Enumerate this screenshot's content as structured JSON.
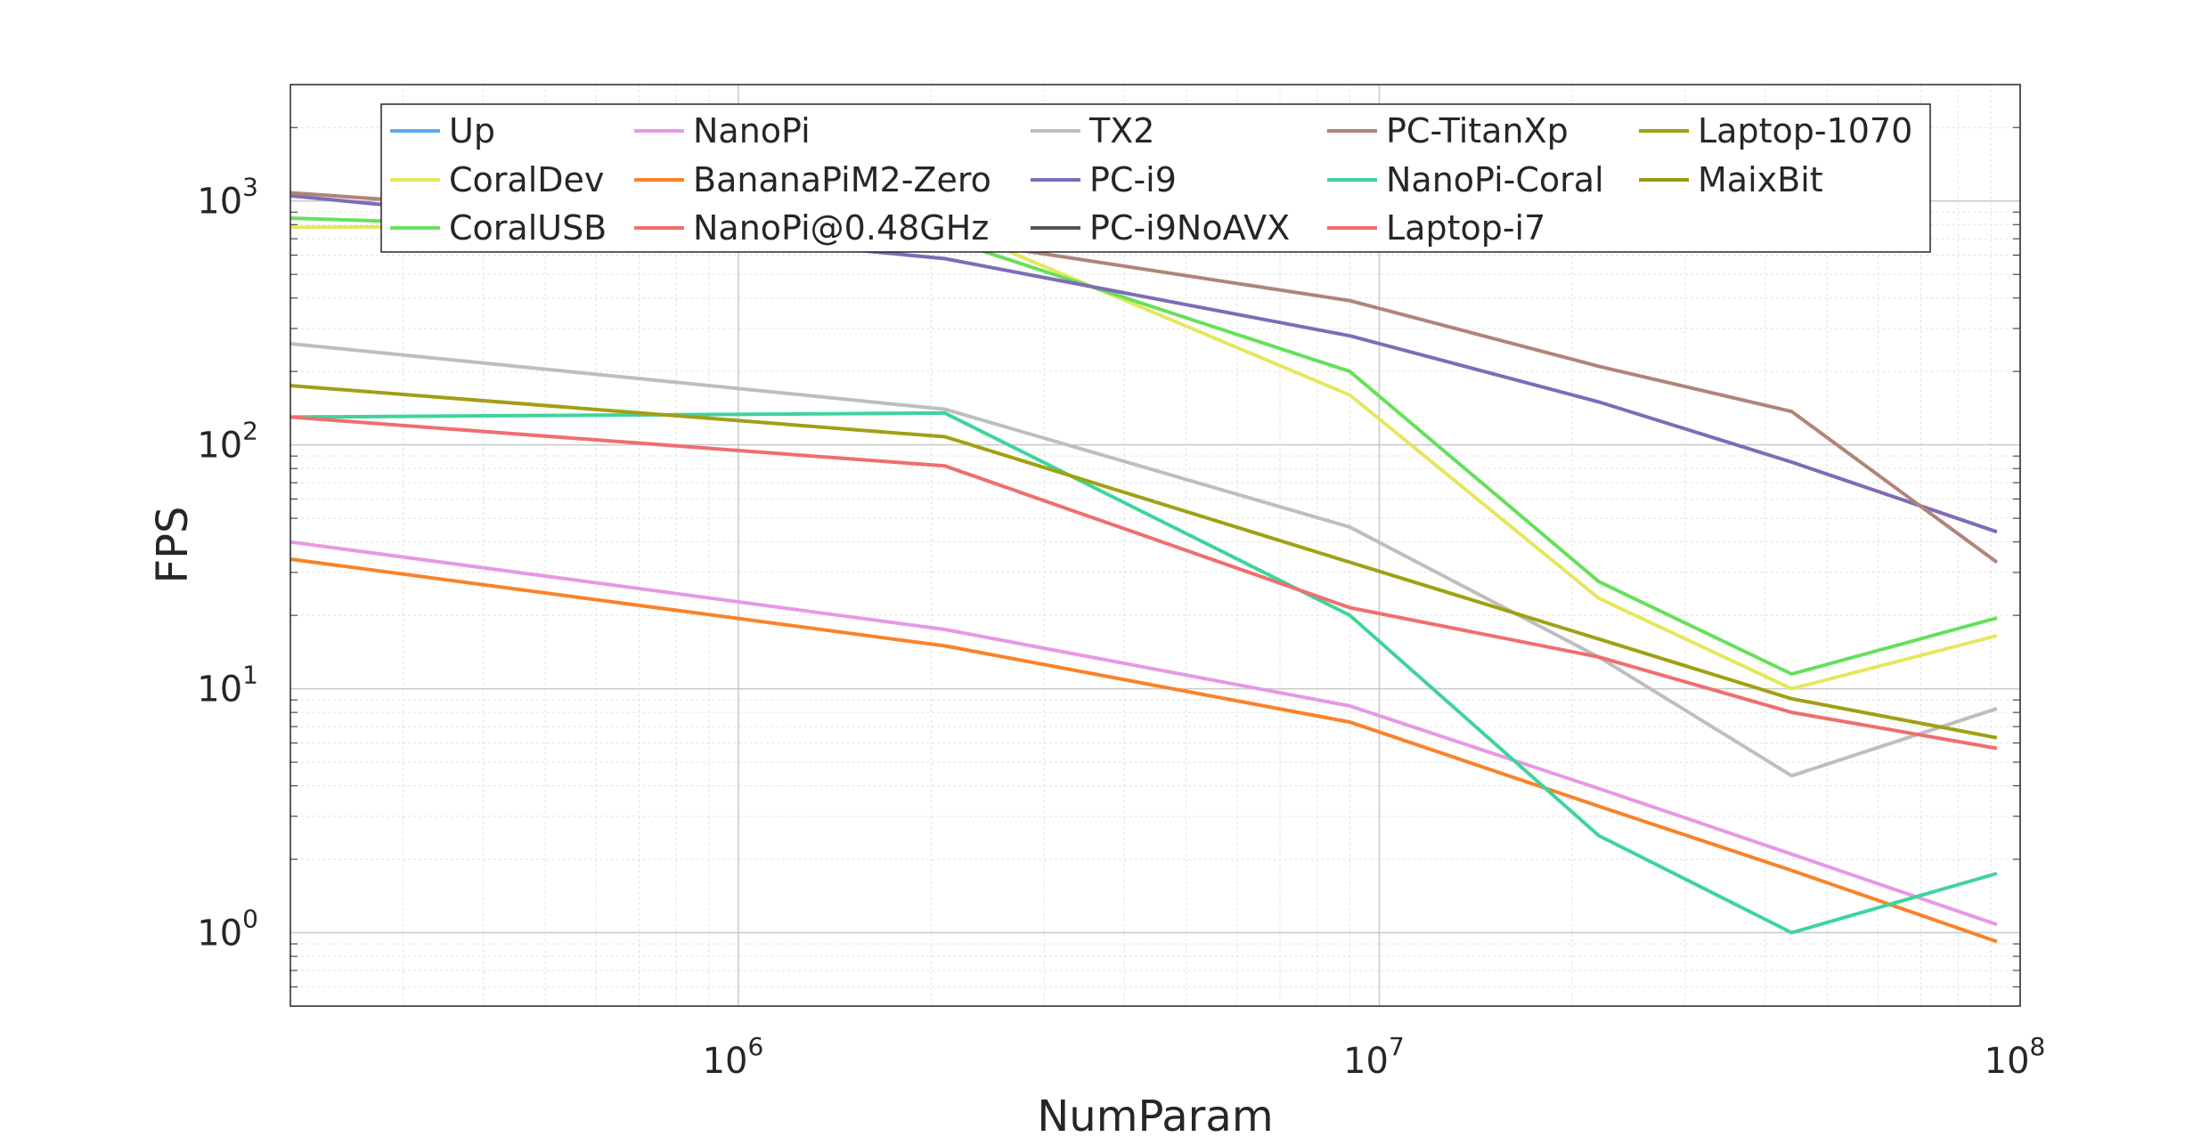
{
  "chart_data": {
    "type": "line",
    "xlabel": "NumParam",
    "ylabel": "FPS",
    "x_scale": "log",
    "y_scale": "log",
    "xlim": [
      200000,
      100000000
    ],
    "ylim": [
      0.5,
      3000
    ],
    "x_ticks": [
      {
        "value": 1000000,
        "base": "10",
        "exp": "6"
      },
      {
        "value": 10000000,
        "base": "10",
        "exp": "7"
      },
      {
        "value": 100000000,
        "base": "10",
        "exp": "8"
      }
    ],
    "y_ticks": [
      {
        "value": 1,
        "base": "10",
        "exp": "0"
      },
      {
        "value": 10,
        "base": "10",
        "exp": "1"
      },
      {
        "value": 100,
        "base": "10",
        "exp": "2"
      },
      {
        "value": 1000,
        "base": "10",
        "exp": "3"
      }
    ],
    "grid": true,
    "legend_position": "top",
    "series": [
      {
        "name": "Up",
        "color": "#5aaaf0",
        "x": [],
        "y": []
      },
      {
        "name": "CoralDev",
        "color": "#e6e65f",
        "x": [
          200000,
          2100000,
          9000000,
          22000000,
          44000000,
          92000000
        ],
        "y": [
          780,
          800,
          160,
          23.5,
          10,
          16.5
        ]
      },
      {
        "name": "CoralUSB",
        "color": "#66e05a",
        "x": [
          200000,
          2100000,
          9000000,
          22000000,
          44000000,
          92000000
        ],
        "y": [
          850,
          700,
          200,
          27.5,
          11.5,
          19.5
        ]
      },
      {
        "name": "NanoPi",
        "color": "#e698e6",
        "x": [
          200000,
          2100000,
          9000000,
          22000000,
          44000000,
          92000000
        ],
        "y": [
          40,
          17.5,
          8.5,
          3.9,
          2.1,
          1.08
        ]
      },
      {
        "name": "BananaPiM2-Zero",
        "color": "#fa8228",
        "x": [
          200000,
          2100000,
          9000000,
          22000000,
          44000000,
          92000000
        ],
        "y": [
          34,
          15,
          7.3,
          3.3,
          1.8,
          0.92
        ]
      },
      {
        "name": "NanoPi@0.48GHz",
        "color": "#f06e6e",
        "x": [],
        "y": []
      },
      {
        "name": "TX2",
        "color": "#bebebe",
        "x": [
          200000,
          2100000,
          9000000,
          22000000,
          44000000,
          92000000
        ],
        "y": [
          260,
          140,
          46,
          13.5,
          4.4,
          8.3
        ]
      },
      {
        "name": "PC-i9",
        "color": "#7f6bb8",
        "x": [
          200000,
          2100000,
          9000000,
          22000000,
          44000000,
          92000000
        ],
        "y": [
          1050,
          580,
          280,
          150,
          85,
          44
        ]
      },
      {
        "name": "PC-i9NoAVX",
        "color": "#555555",
        "x": [],
        "y": []
      },
      {
        "name": "PC-TitanXp",
        "color": "#b08478",
        "x": [
          200000,
          2100000,
          9000000,
          22000000,
          44000000,
          92000000
        ],
        "y": [
          1080,
          700,
          390,
          210,
          137,
          33
        ]
      },
      {
        "name": "NanoPi-Coral",
        "color": "#3ed49a",
        "x": [
          200000,
          2100000,
          9000000,
          22000000,
          44000000,
          92000000
        ],
        "y": [
          130,
          135,
          20,
          2.5,
          1.0,
          1.75
        ]
      },
      {
        "name": "Laptop-i7",
        "color": "#f06e6e",
        "x": [
          200000,
          2100000,
          9000000,
          22000000,
          44000000,
          92000000
        ],
        "y": [
          130,
          82,
          21.5,
          13.5,
          8.0,
          5.7
        ]
      },
      {
        "name": "Laptop-1070",
        "color": "#a0a014",
        "x": [
          200000,
          2100000,
          9000000,
          22000000,
          44000000,
          92000000
        ],
        "y": [
          175,
          108,
          33,
          16,
          9.1,
          6.3
        ]
      },
      {
        "name": "MaixBit",
        "color": "#9a9a14",
        "x": [],
        "y": []
      }
    ]
  }
}
